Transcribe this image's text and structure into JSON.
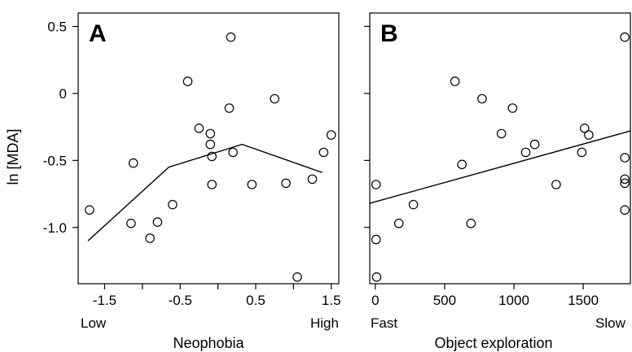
{
  "chart_data": [
    {
      "type": "scatter",
      "panel_label": "A",
      "xlabel": "Neophobia",
      "ylabel": "ln [MDA]",
      "xlim": [
        -1.85,
        1.6
      ],
      "ylim": [
        -1.42,
        0.6
      ],
      "xticks": [
        -1.5,
        -1.0,
        -0.5,
        0.0,
        0.5,
        1.0,
        1.5
      ],
      "xtick_labels": [
        "-1.5",
        "",
        "-0.5",
        "",
        "0.5",
        "",
        "1.5"
      ],
      "yticks": [
        0.5,
        0.0,
        -0.5,
        -1.0
      ],
      "ytick_labels": [
        "0.5",
        "0",
        "-0.5",
        "-1.0"
      ],
      "end_labels": [
        "Low",
        "High"
      ],
      "points": [
        {
          "x": -1.7,
          "y": -0.87
        },
        {
          "x": -1.12,
          "y": -0.52
        },
        {
          "x": -1.15,
          "y": -0.97
        },
        {
          "x": -0.9,
          "y": -1.08
        },
        {
          "x": -0.8,
          "y": -0.96
        },
        {
          "x": -0.6,
          "y": -0.83
        },
        {
          "x": -0.4,
          "y": 0.09
        },
        {
          "x": -0.25,
          "y": -0.26
        },
        {
          "x": -0.1,
          "y": -0.3
        },
        {
          "x": -0.1,
          "y": -0.38
        },
        {
          "x": -0.08,
          "y": -0.47
        },
        {
          "x": -0.08,
          "y": -0.68
        },
        {
          "x": 0.15,
          "y": -0.11
        },
        {
          "x": 0.17,
          "y": 0.42
        },
        {
          "x": 0.2,
          "y": -0.44
        },
        {
          "x": 0.45,
          "y": -0.68
        },
        {
          "x": 0.75,
          "y": -0.04
        },
        {
          "x": 0.9,
          "y": -0.67
        },
        {
          "x": 1.05,
          "y": -1.37
        },
        {
          "x": 1.25,
          "y": -0.64
        },
        {
          "x": 1.4,
          "y": -0.44
        },
        {
          "x": 1.5,
          "y": -0.31
        }
      ],
      "fit_line": [
        {
          "x": -1.72,
          "y": -1.1
        },
        {
          "x": -0.65,
          "y": -0.55
        },
        {
          "x": 0.32,
          "y": -0.38
        },
        {
          "x": 1.38,
          "y": -0.59
        }
      ]
    },
    {
      "type": "scatter",
      "panel_label": "B",
      "xlabel": "Object exploration",
      "ylabel": "",
      "xlim": [
        -40,
        1840
      ],
      "ylim": [
        -1.42,
        0.6
      ],
      "xticks": [
        0,
        500,
        1000,
        1500
      ],
      "xtick_labels": [
        "0",
        "500",
        "1000",
        "1500"
      ],
      "yticks": [
        0.5,
        0.0,
        -0.5,
        -1.0
      ],
      "end_labels": [
        "Fast",
        "Slow"
      ],
      "points": [
        {
          "x": 5,
          "y": -0.68
        },
        {
          "x": 5,
          "y": -1.09
        },
        {
          "x": 10,
          "y": -1.37
        },
        {
          "x": 170,
          "y": -0.97
        },
        {
          "x": 275,
          "y": -0.83
        },
        {
          "x": 575,
          "y": 0.09
        },
        {
          "x": 625,
          "y": -0.53
        },
        {
          "x": 690,
          "y": -0.97
        },
        {
          "x": 770,
          "y": -0.04
        },
        {
          "x": 910,
          "y": -0.3
        },
        {
          "x": 990,
          "y": -0.11
        },
        {
          "x": 1085,
          "y": -0.44
        },
        {
          "x": 1150,
          "y": -0.38
        },
        {
          "x": 1305,
          "y": -0.68
        },
        {
          "x": 1490,
          "y": -0.44
        },
        {
          "x": 1510,
          "y": -0.26
        },
        {
          "x": 1540,
          "y": -0.31
        },
        {
          "x": 1800,
          "y": 0.42
        },
        {
          "x": 1800,
          "y": -0.48
        },
        {
          "x": 1800,
          "y": -0.64
        },
        {
          "x": 1800,
          "y": -0.67
        },
        {
          "x": 1800,
          "y": -0.87
        }
      ],
      "fit_line": [
        {
          "x": -40,
          "y": -0.82
        },
        {
          "x": 1840,
          "y": -0.28
        }
      ]
    }
  ]
}
